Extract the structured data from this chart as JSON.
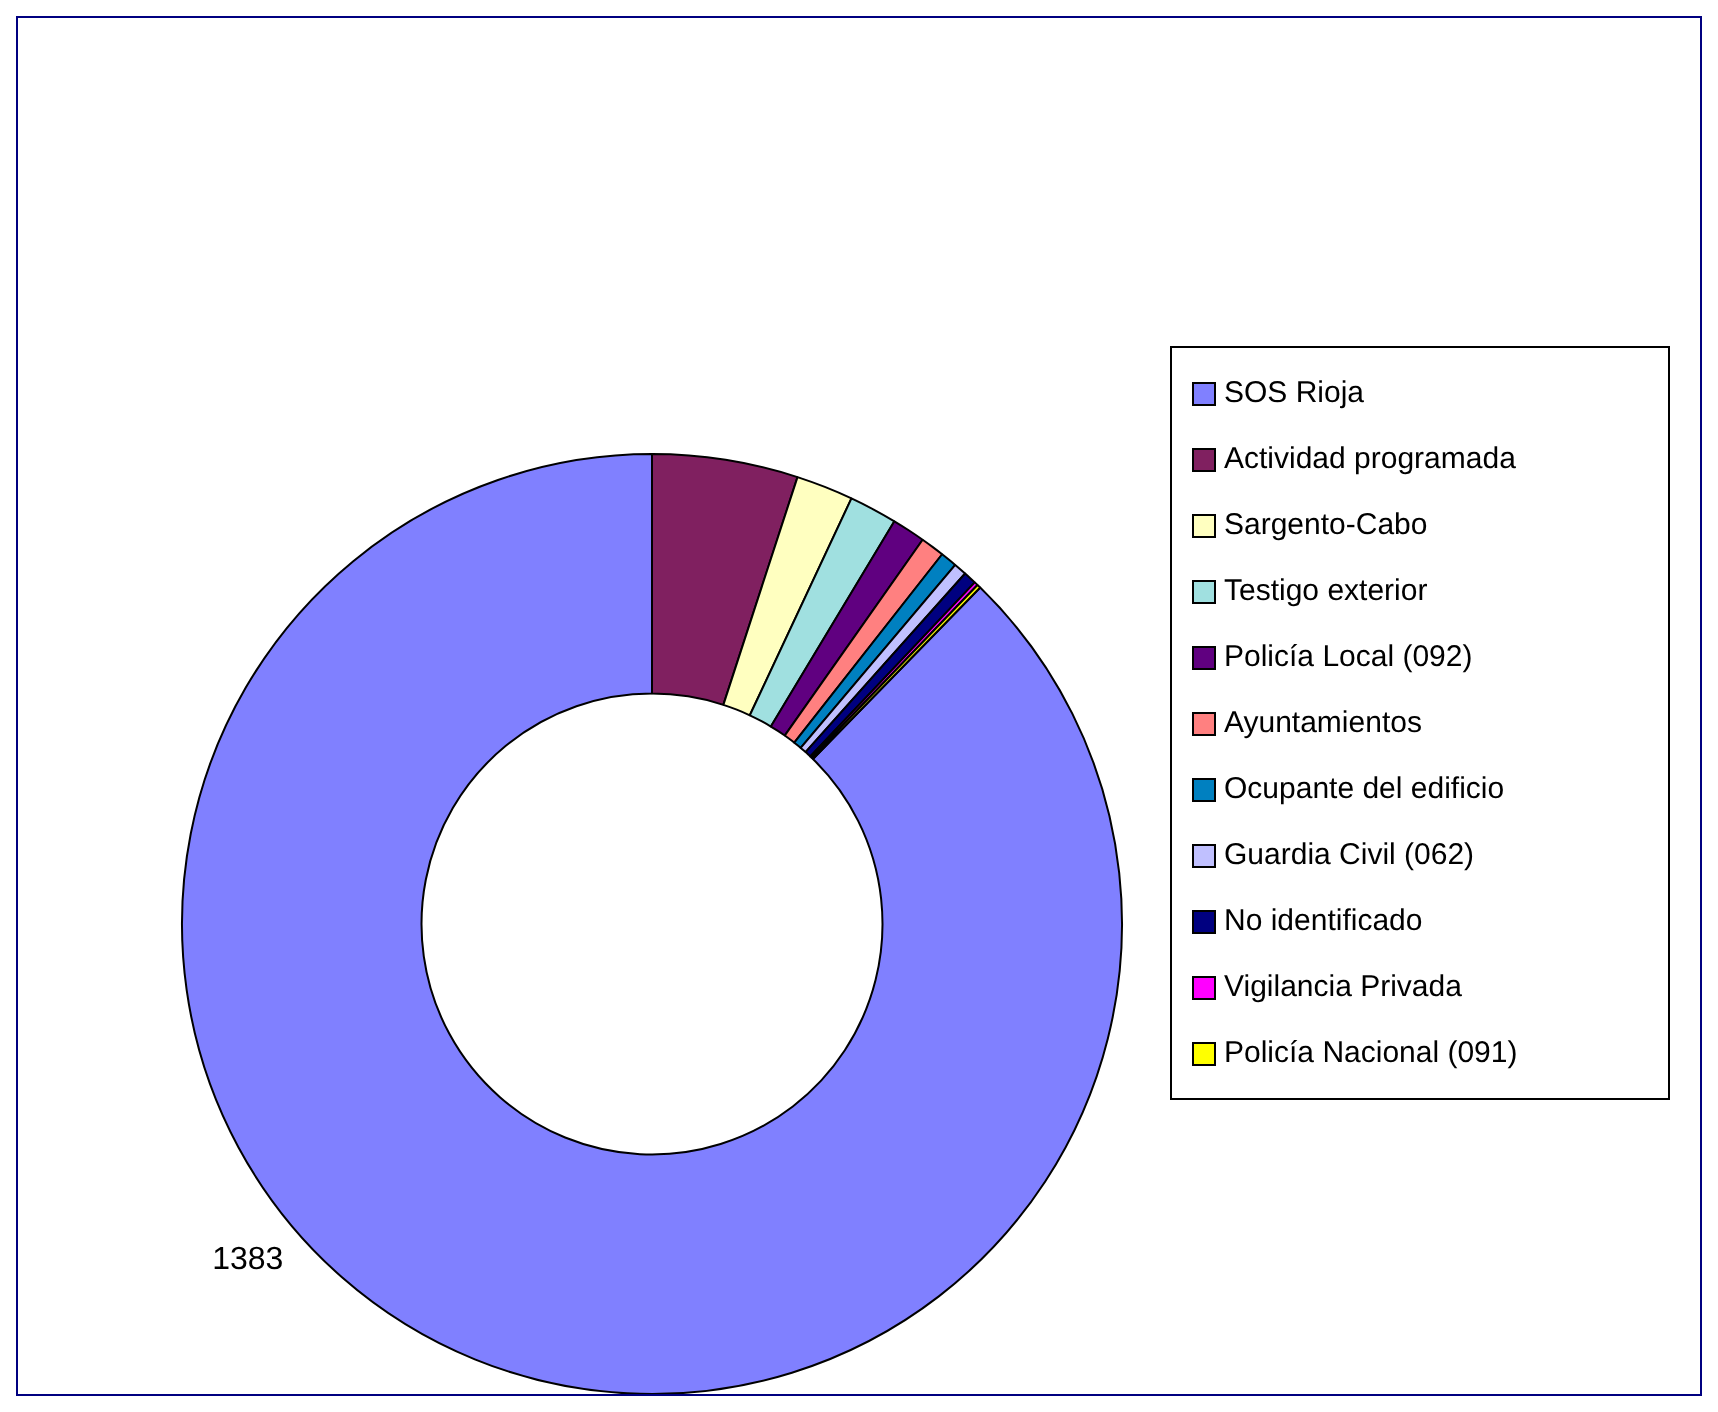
{
  "chart_data": {
    "type": "donut",
    "categories": [
      "SOS Rioja",
      "Actividad programada",
      "Sargento-Cabo",
      "Testigo exterior",
      "Policía Local  (092)",
      "Ayuntamientos",
      "Ocupante del edificio",
      "Guardia Civil  (062)",
      "No identificado",
      "Vigilancia Privada",
      "Policía Nacional (091)"
    ],
    "values": [
      1383,
      79,
      31,
      26,
      18,
      13,
      9,
      7,
      7,
      2,
      2
    ],
    "value_labels": [
      "1383",
      null,
      null,
      null,
      null,
      null,
      null,
      null,
      null,
      null,
      null
    ],
    "colors": [
      "#8080ff",
      "#802060",
      "#ffffc0",
      "#a0e0e0",
      "#600080",
      "#ff8080",
      "#0080c0",
      "#c0c0ff",
      "#000080",
      "#ff00ff",
      "#ffff00"
    ],
    "legend": "right"
  }
}
